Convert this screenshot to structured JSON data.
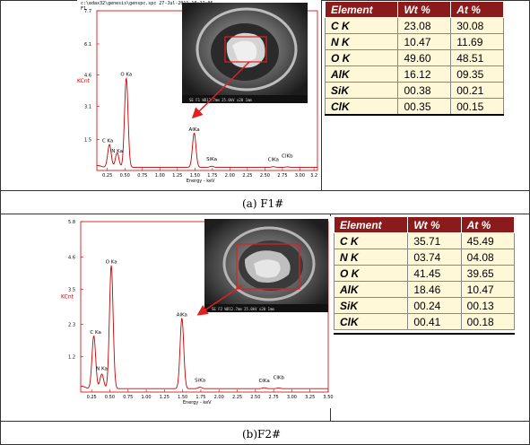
{
  "panel_a": {
    "header_line1": "c:\\edax32\\genesis\\genspc.spc  27-Jul-2011 10:22:06",
    "header_line2": "F1",
    "caption": "(a) F1#",
    "table": {
      "headers": [
        "Element",
        "Wt %",
        "At %"
      ],
      "rows": [
        [
          "C K",
          "23.08",
          "30.08"
        ],
        [
          "N K",
          "10.47",
          "11.69"
        ],
        [
          "O K",
          "49.60",
          "48.51"
        ],
        [
          "AlK",
          "16.12",
          "09.35"
        ],
        [
          "SiK",
          "00.38",
          "00.21"
        ],
        [
          "ClK",
          "00.35",
          "00.15"
        ]
      ]
    }
  },
  "panel_b": {
    "caption": "(b)F2#",
    "table": {
      "headers": [
        "Element",
        "Wt %",
        "At %"
      ],
      "rows": [
        [
          "C K",
          "35.71",
          "45.49"
        ],
        [
          "N K",
          "03.74",
          "04.08"
        ],
        [
          "O K",
          "41.45",
          "39.65"
        ],
        [
          "AlK",
          "18.46",
          "10.47"
        ],
        [
          "SiK",
          "00.24",
          "00.13"
        ],
        [
          "ClK",
          "00.41",
          "00.18"
        ]
      ]
    }
  },
  "chart_data": [
    {
      "type": "line",
      "title": "",
      "xlabel": "Energy - keV",
      "ylabel": "KCnt",
      "xlim": [
        0.1,
        3.25
      ],
      "ylim": [
        0,
        7.7
      ],
      "x_ticks": [
        "0.25",
        "0.50",
        "0.75",
        "1.00",
        "1.25",
        "1.50",
        "1.75",
        "2.00",
        "2.25",
        "2.50",
        "2.75",
        "3.00",
        "3.2"
      ],
      "y_ticks": [
        "1.5",
        "3.1",
        "4.6",
        "6.1",
        "7.7"
      ],
      "peaks": [
        {
          "label": "C Ka",
          "x": 0.28,
          "y": 1.1
        },
        {
          "label": "N Ka",
          "x": 0.39,
          "y": 0.7
        },
        {
          "label": "O Ka",
          "x": 0.52,
          "y": 4.3
        },
        {
          "label": "AlKa",
          "x": 1.49,
          "y": 1.65
        },
        {
          "label": "SiKa",
          "x": 1.74,
          "y": 0.05
        },
        {
          "label": "ClKa",
          "x": 2.62,
          "y": 0.03
        },
        {
          "label": "ClKb",
          "x": 2.82,
          "y": 0.02
        }
      ]
    },
    {
      "type": "line",
      "title": "",
      "xlabel": "Energy - keV",
      "ylabel": "KCnt",
      "xlim": [
        0.1,
        3.5
      ],
      "ylim": [
        0,
        5.8
      ],
      "x_ticks": [
        "0.25",
        "0.50",
        "0.75",
        "1.00",
        "1.25",
        "1.50",
        "1.75",
        "2.00",
        "2.25",
        "2.50",
        "2.75",
        "3.00",
        "3.25",
        "3.50"
      ],
      "y_ticks": [
        "1.2",
        "2.3",
        "3.5",
        "4.6",
        "5.8"
      ],
      "peaks": [
        {
          "label": "C Ka",
          "x": 0.28,
          "y": 1.8
        },
        {
          "label": "N Ka",
          "x": 0.39,
          "y": 0.5
        },
        {
          "label": "O Ka",
          "x": 0.52,
          "y": 4.2
        },
        {
          "label": "AlKa",
          "x": 1.49,
          "y": 2.4
        },
        {
          "label": "SiKa",
          "x": 1.74,
          "y": 0.05
        },
        {
          "label": "ClKa",
          "x": 2.62,
          "y": 0.03
        },
        {
          "label": "ClKb",
          "x": 2.82,
          "y": 0.02
        }
      ]
    }
  ]
}
